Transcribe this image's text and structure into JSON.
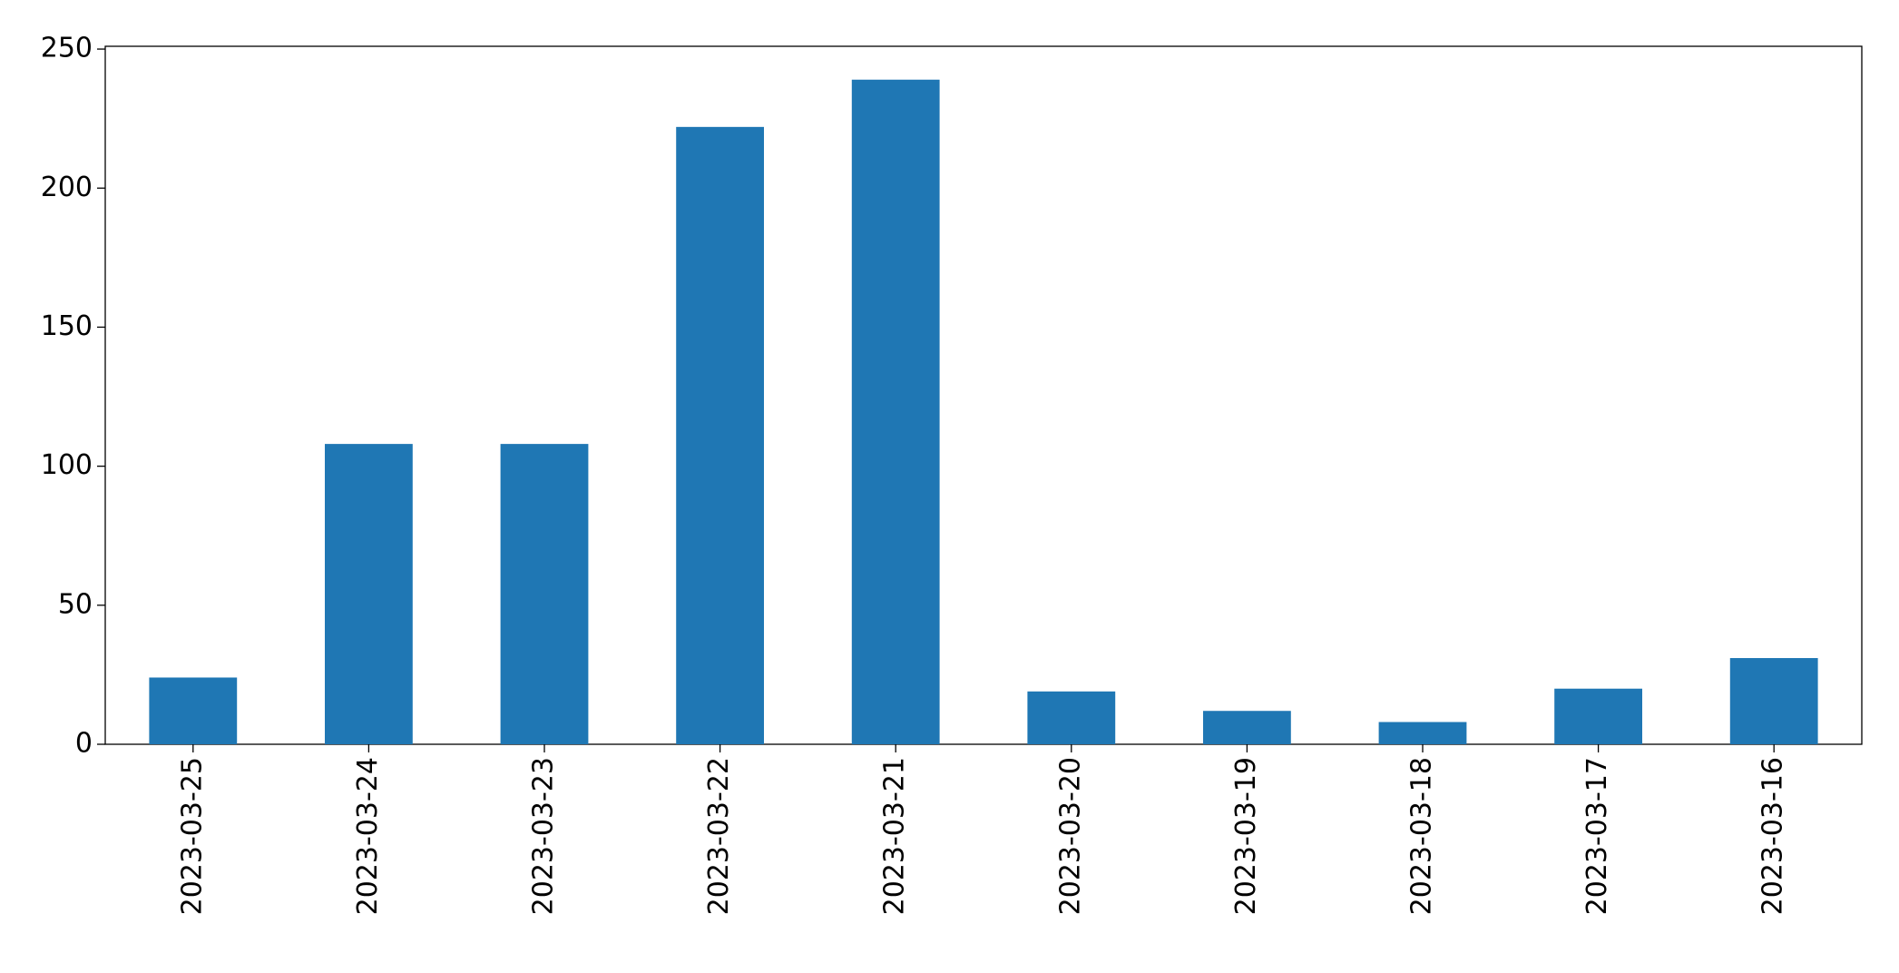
{
  "chart_data": {
    "type": "bar",
    "categories": [
      "2023-03-25",
      "2023-03-24",
      "2023-03-23",
      "2023-03-22",
      "2023-03-21",
      "2023-03-20",
      "2023-03-19",
      "2023-03-18",
      "2023-03-17",
      "2023-03-16"
    ],
    "values": [
      24,
      108,
      108,
      222,
      239,
      19,
      12,
      8,
      20,
      31
    ],
    "color": "#1f77b4",
    "ylim": [
      0,
      251
    ],
    "yticks": [
      0,
      50,
      100,
      150,
      200,
      250
    ],
    "grid": false
  }
}
